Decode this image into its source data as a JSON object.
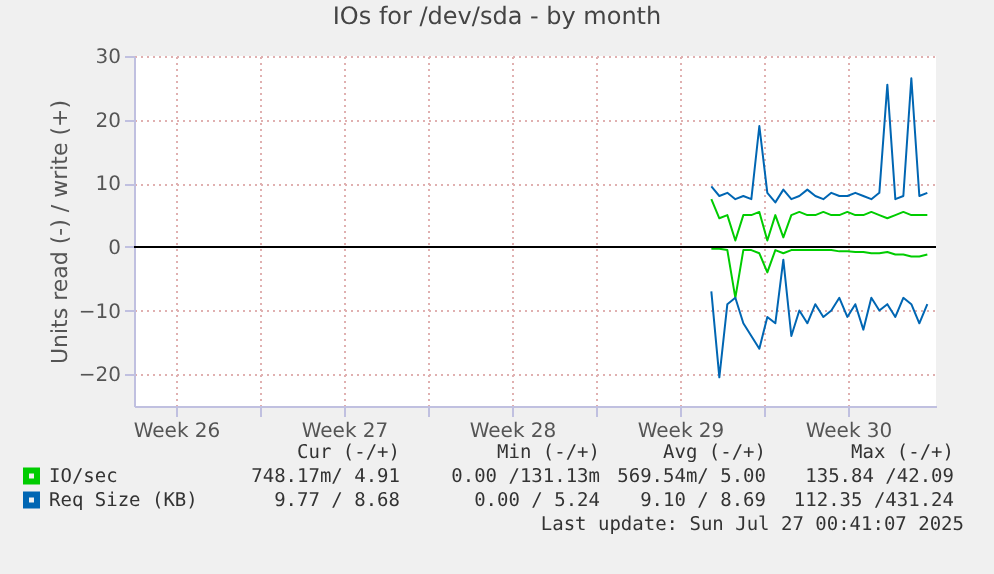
{
  "chart_data": {
    "type": "line",
    "title": "IOs for /dev/sda - by month",
    "ylabel": "Units read (-) / write (+)",
    "x": [
      "2025-07-17T16:00",
      "2025-07-18T00:00",
      "2025-07-18T08:00",
      "2025-07-18T16:00",
      "2025-07-19T00:00",
      "2025-07-19T08:00",
      "2025-07-19T16:00",
      "2025-07-20T00:00",
      "2025-07-20T08:00",
      "2025-07-20T16:00",
      "2025-07-21T00:00",
      "2025-07-21T08:00",
      "2025-07-21T16:00",
      "2025-07-22T00:00",
      "2025-07-22T08:00",
      "2025-07-22T16:00",
      "2025-07-23T00:00",
      "2025-07-23T08:00",
      "2025-07-23T16:00",
      "2025-07-24T00:00",
      "2025-07-24T08:00",
      "2025-07-24T16:00",
      "2025-07-25T00:00",
      "2025-07-25T08:00",
      "2025-07-25T16:00",
      "2025-07-26T00:00",
      "2025-07-26T08:00",
      "2025-07-26T16:00"
    ],
    "series": [
      {
        "name": "IO/sec",
        "color": "#00cc00",
        "values": [
          7.5,
          4.5,
          5,
          1,
          5,
          5,
          5.5,
          1,
          5,
          1.5,
          5,
          5.5,
          5,
          5,
          5.5,
          5,
          5,
          5.5,
          5,
          5,
          5.5,
          5,
          4.5,
          5,
          5.5,
          5,
          5,
          5
        ]
      },
      {
        "color": "#00cc00",
        "values": [
          -0.3,
          -0.3,
          -0.5,
          -8,
          -0.5,
          -0.5,
          -1,
          -4,
          -0.5,
          -1,
          -0.5,
          -0.5,
          -0.5,
          -0.5,
          -0.5,
          -0.5,
          -0.7,
          -0.7,
          -0.8,
          -0.8,
          -1,
          -1,
          -0.8,
          -1.2,
          -1.2,
          -1.5,
          -1.5,
          -1.2
        ]
      },
      {
        "name": "Req Size (KB)",
        "color": "#0066b3",
        "values": [
          9.5,
          8,
          8.5,
          7.5,
          8,
          7.5,
          19,
          8.5,
          7,
          9,
          7.5,
          8,
          9,
          8,
          7.5,
          8.5,
          8,
          8,
          8.5,
          8,
          7.5,
          8.5,
          25.5,
          7.5,
          8,
          26.5,
          8,
          8.5
        ]
      },
      {
        "color": "#0066b3",
        "values": [
          -7,
          -20.5,
          -9,
          -8,
          -12,
          -14,
          -16,
          -11,
          -12,
          -2,
          -14,
          -10,
          -12,
          -9,
          -11,
          -10,
          -8,
          -11,
          -9,
          -13,
          -8,
          -10,
          -9,
          -11,
          -8,
          -9,
          -12,
          -9
        ]
      }
    ],
    "xlim": [
      "2025-06-23T14:40",
      "2025-07-27T00:40"
    ],
    "xticks": [
      {
        "value": "2025-06-25T08:40",
        "label": "Week 26"
      },
      {
        "value": "2025-06-28T20:40",
        "label": null
      },
      {
        "value": "2025-07-02T08:40",
        "label": "Week 27"
      },
      {
        "value": "2025-07-05T20:40",
        "label": null
      },
      {
        "value": "2025-07-09T08:40",
        "label": "Week 28"
      },
      {
        "value": "2025-07-12T20:40",
        "label": null
      },
      {
        "value": "2025-07-16T08:40",
        "label": "Week 29"
      },
      {
        "value": "2025-07-19T20:40",
        "label": null
      },
      {
        "value": "2025-07-23T08:40",
        "label": "Week 30"
      }
    ],
    "ylim": [
      -25,
      30
    ],
    "yticks": [
      -20,
      -10,
      0,
      10,
      20,
      30
    ],
    "ref_lines": [
      {
        "axis": "y",
        "value": 0,
        "color": "#000000"
      }
    ],
    "grid": true,
    "legend": "bottom left",
    "line_style": "solid",
    "annotations": [
      "Cur (-/+)",
      "Min (-/+)",
      "Avg (-/+)",
      "Max (-/+)",
      "748.17m/ 4.91",
      "0.00 /131.13m",
      "569.54m/ 5.00",
      "135.84 /42.09",
      "9.77 / 8.68",
      "0.00 / 5.24",
      "9.10 / 8.69",
      "112.35 /431.24",
      "Last update: Sun Jul 27 00:41:07 2025"
    ]
  }
}
